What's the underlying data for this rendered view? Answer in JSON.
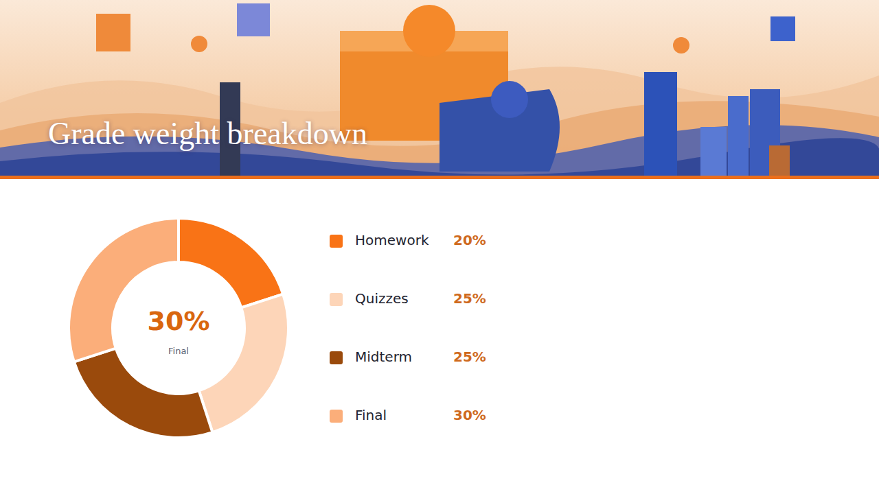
{
  "chart_data": {
    "type": "pie",
    "title": "Grade weight breakdown",
    "categories": [
      "Homework",
      "Quizzes",
      "Midterm",
      "Final"
    ],
    "values": [
      20,
      25,
      25,
      30
    ],
    "value_labels": [
      "20%",
      "25%",
      "25%",
      "30%"
    ],
    "colors": [
      "#f97316",
      "#fdd5b8",
      "#9a4a0c",
      "#fbae7a"
    ],
    "annotations": [
      {
        "text": "30%"
      },
      {
        "text": "Final"
      }
    ],
    "legend": "right"
  }
}
